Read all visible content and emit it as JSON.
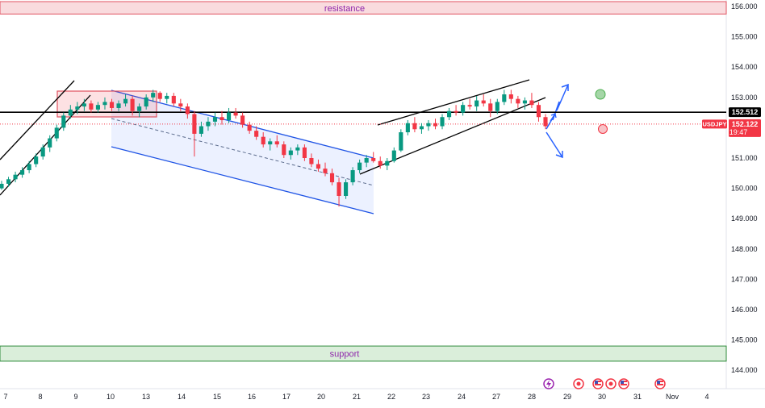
{
  "chart_data": {
    "type": "candlestick",
    "symbol": "USDJPY",
    "y_axis": {
      "range": [
        143.8,
        156.2
      ],
      "ticks": [
        "156.000",
        "155.000",
        "154.000",
        "153.000",
        "152.000",
        "151.000",
        "150.000",
        "149.000",
        "148.000",
        "147.000",
        "146.000",
        "145.000",
        "144.000"
      ]
    },
    "x_axis": {
      "ticks": [
        "7",
        "8",
        "9",
        "10",
        "13",
        "14",
        "15",
        "16",
        "17",
        "20",
        "21",
        "22",
        "23",
        "24",
        "27",
        "28",
        "29",
        "30",
        "31",
        "Nov",
        "4"
      ]
    },
    "zones": [
      {
        "name": "resistance",
        "label": "resistance",
        "from": 155.75,
        "to": 156.2,
        "color": "#f8d7da",
        "border": "#e05260"
      },
      {
        "name": "support",
        "label": "support",
        "from": 144.3,
        "to": 144.8,
        "color": "#d6ecd6",
        "border": "#2e8b3a"
      }
    ],
    "horizontal_line": {
      "value": 152.512,
      "label": "152.512",
      "color": "#000000"
    },
    "current_price": {
      "value": 152.122,
      "label": "152.122",
      "symbol_label": "USDJPY",
      "countdown": "19:47",
      "color": "#f23645"
    },
    "series": [
      {
        "type": "candles",
        "up_color": "#089981",
        "down_color": "#f23645",
        "ohlc": [
          [
            150.0,
            150.25,
            149.95,
            150.15
          ],
          [
            150.15,
            150.38,
            150.05,
            150.3
          ],
          [
            150.3,
            150.55,
            150.2,
            150.45
          ],
          [
            150.45,
            150.7,
            150.35,
            150.6
          ],
          [
            150.6,
            150.9,
            150.5,
            150.8
          ],
          [
            150.8,
            151.15,
            150.7,
            151.05
          ],
          [
            151.05,
            151.45,
            150.95,
            151.35
          ],
          [
            151.35,
            151.75,
            151.2,
            151.65
          ],
          [
            151.65,
            152.1,
            151.55,
            152.0
          ],
          [
            152.0,
            152.5,
            151.9,
            152.4
          ],
          [
            152.4,
            152.75,
            152.3,
            152.6
          ],
          [
            152.6,
            152.85,
            152.45,
            152.7
          ],
          [
            152.7,
            152.95,
            152.55,
            152.8
          ],
          [
            152.8,
            152.9,
            152.5,
            152.6
          ],
          [
            152.6,
            152.85,
            152.5,
            152.75
          ],
          [
            152.75,
            153.0,
            152.6,
            152.85
          ],
          [
            152.85,
            152.95,
            152.55,
            152.65
          ],
          [
            152.65,
            152.9,
            152.55,
            152.8
          ],
          [
            152.8,
            153.1,
            152.7,
            152.95
          ],
          [
            152.95,
            153.05,
            152.4,
            152.55
          ],
          [
            152.55,
            152.8,
            152.35,
            152.7
          ],
          [
            152.7,
            153.1,
            152.6,
            153.0
          ],
          [
            153.0,
            153.25,
            152.85,
            153.15
          ],
          [
            153.15,
            153.2,
            152.85,
            152.95
          ],
          [
            152.95,
            153.15,
            152.8,
            153.05
          ],
          [
            153.05,
            153.15,
            152.7,
            152.8
          ],
          [
            152.8,
            152.95,
            152.55,
            152.7
          ],
          [
            152.7,
            152.8,
            152.3,
            152.45
          ],
          [
            152.45,
            152.55,
            151.05,
            151.8
          ],
          [
            151.8,
            152.2,
            151.7,
            152.05
          ],
          [
            152.05,
            152.35,
            151.9,
            152.2
          ],
          [
            152.2,
            152.5,
            152.05,
            152.35
          ],
          [
            152.35,
            152.55,
            152.1,
            152.25
          ],
          [
            152.25,
            152.65,
            152.15,
            152.5
          ],
          [
            152.5,
            152.65,
            152.3,
            152.4
          ],
          [
            152.4,
            152.5,
            152.0,
            152.1
          ],
          [
            152.1,
            152.2,
            151.8,
            151.9
          ],
          [
            151.9,
            152.05,
            151.6,
            151.7
          ],
          [
            151.7,
            151.85,
            151.35,
            151.45
          ],
          [
            151.45,
            151.65,
            151.25,
            151.55
          ],
          [
            151.55,
            151.75,
            151.35,
            151.45
          ],
          [
            151.45,
            151.55,
            151.0,
            151.1
          ],
          [
            151.1,
            151.35,
            150.95,
            151.25
          ],
          [
            151.25,
            151.45,
            151.1,
            151.35
          ],
          [
            151.35,
            151.45,
            150.9,
            151.0
          ],
          [
            151.0,
            151.15,
            150.7,
            150.8
          ],
          [
            150.8,
            150.95,
            150.55,
            150.65
          ],
          [
            150.65,
            150.85,
            150.4,
            150.5
          ],
          [
            150.5,
            150.65,
            150.1,
            150.2
          ],
          [
            150.2,
            150.35,
            149.4,
            149.75
          ],
          [
            149.75,
            150.3,
            149.65,
            150.2
          ],
          [
            150.2,
            150.7,
            150.1,
            150.6
          ],
          [
            150.6,
            150.95,
            150.5,
            150.85
          ],
          [
            150.85,
            151.1,
            150.7,
            151.0
          ],
          [
            151.0,
            151.2,
            150.85,
            150.9
          ],
          [
            150.9,
            151.05,
            150.65,
            150.75
          ],
          [
            150.75,
            151.0,
            150.6,
            150.9
          ],
          [
            150.9,
            151.35,
            150.85,
            151.25
          ],
          [
            151.25,
            151.95,
            151.2,
            151.85
          ],
          [
            151.85,
            152.25,
            151.75,
            152.15
          ],
          [
            152.15,
            152.35,
            151.85,
            151.95
          ],
          [
            151.95,
            152.15,
            151.8,
            152.05
          ],
          [
            152.05,
            152.25,
            151.9,
            152.15
          ],
          [
            152.15,
            152.3,
            151.95,
            152.05
          ],
          [
            152.05,
            152.45,
            151.95,
            152.35
          ],
          [
            152.35,
            152.65,
            152.25,
            152.55
          ],
          [
            152.55,
            152.75,
            152.4,
            152.5
          ],
          [
            152.5,
            152.85,
            152.4,
            152.75
          ],
          [
            152.75,
            152.95,
            152.6,
            152.7
          ],
          [
            152.7,
            153.05,
            152.55,
            152.9
          ],
          [
            152.9,
            153.1,
            152.7,
            152.8
          ],
          [
            152.8,
            152.95,
            152.35,
            152.55
          ],
          [
            152.55,
            152.95,
            152.45,
            152.85
          ],
          [
            152.85,
            153.25,
            152.75,
            153.1
          ],
          [
            153.1,
            153.25,
            152.8,
            152.95
          ],
          [
            152.95,
            153.05,
            152.65,
            152.8
          ],
          [
            152.8,
            153.0,
            152.6,
            152.9
          ],
          [
            152.9,
            153.15,
            152.65,
            152.75
          ],
          [
            152.75,
            152.85,
            152.2,
            152.35
          ],
          [
            152.35,
            152.45,
            151.95,
            152.05
          ]
        ]
      }
    ],
    "annotations": [
      {
        "type": "channel",
        "name": "descending-channel",
        "color": "#1e53e5"
      },
      {
        "type": "wedge",
        "name": "rising-wedge",
        "color": "#000000"
      },
      {
        "type": "box",
        "name": "consolidation-box",
        "color": "#e05260"
      },
      {
        "type": "trendline",
        "name": "early-uptrend",
        "color": "#000000"
      },
      {
        "type": "arrow",
        "name": "projection-up",
        "color": "#2962ff"
      },
      {
        "type": "arrow",
        "name": "projection-down",
        "color": "#2962ff"
      },
      {
        "type": "circle",
        "name": "target-up-marker",
        "color": "#4caf50"
      },
      {
        "type": "circle",
        "name": "target-down-marker",
        "color": "#f23645"
      }
    ],
    "legend": "none",
    "grid": false
  }
}
